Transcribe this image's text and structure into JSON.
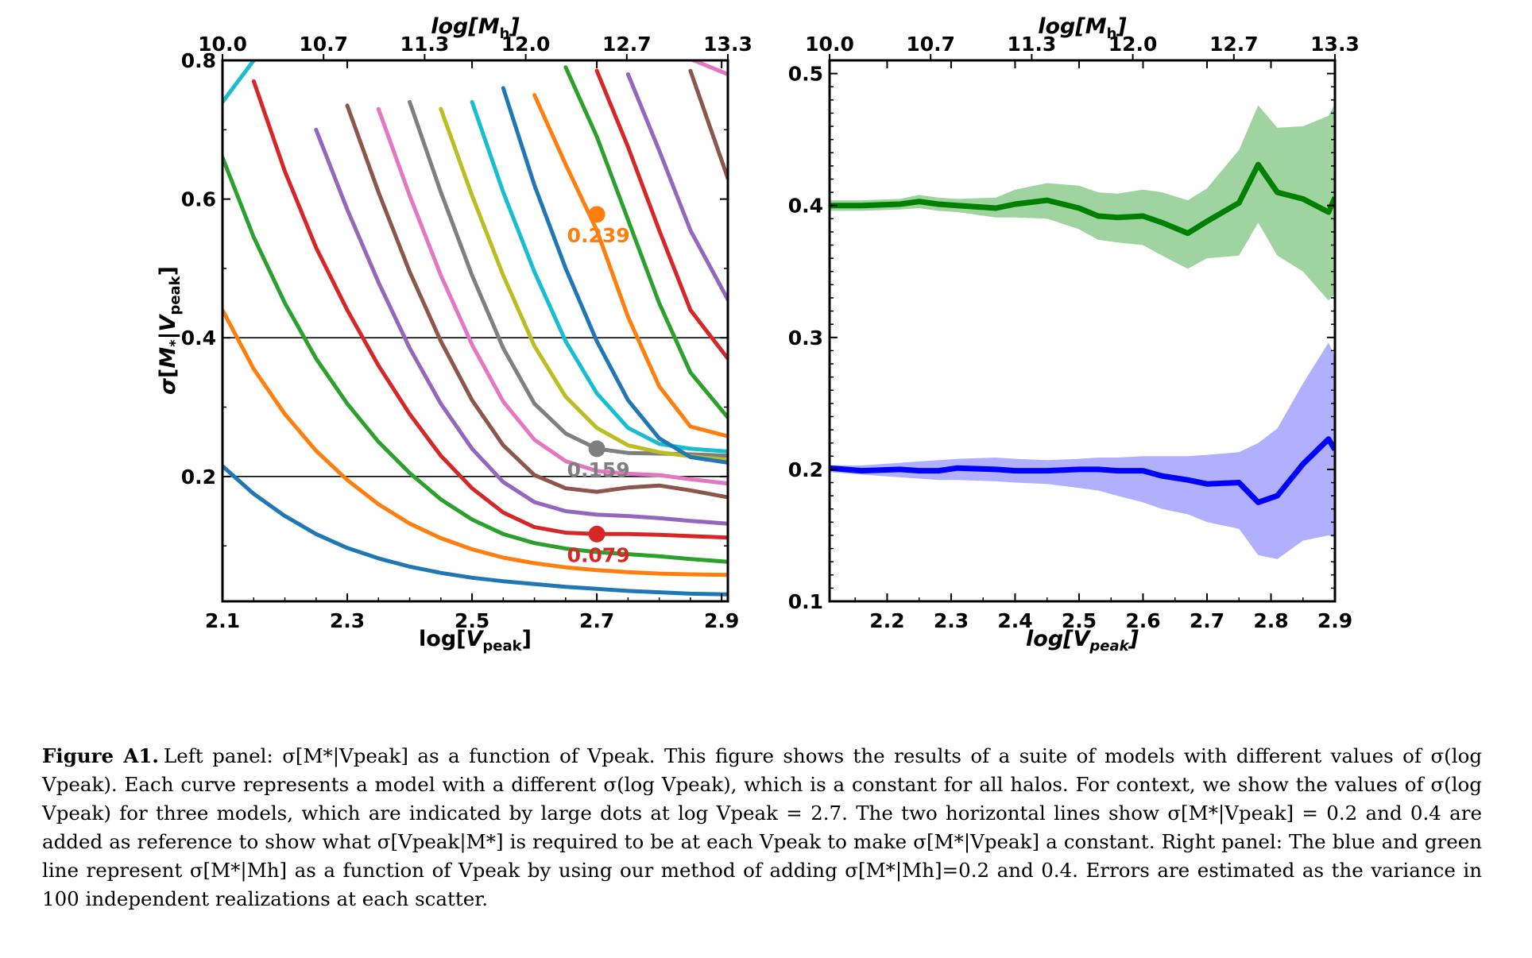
{
  "chart_data": [
    {
      "type": "line",
      "panel": "left",
      "xlabel": "log[V_peak]",
      "ylabel": "σ[M_*|V_peak]",
      "top_axis_label": "log[M_h]",
      "xlim": [
        2.1,
        2.91
      ],
      "ylim": [
        0.02,
        0.8
      ],
      "x_ticks": [
        "2.1",
        "2.3",
        "2.5",
        "2.7",
        "2.9"
      ],
      "x_tick_values": [
        2.1,
        2.3,
        2.5,
        2.7,
        2.9
      ],
      "y_ticks": [
        "0.8",
        "0.6",
        "0.4",
        "0.2"
      ],
      "y_tick_values": [
        0.8,
        0.6,
        0.4,
        0.2
      ],
      "top_ticks": [
        "10.0",
        "10.7",
        "11.3",
        "12.0",
        "12.7",
        "13.3"
      ],
      "top_tick_x": [
        2.1,
        2.262,
        2.424,
        2.586,
        2.748,
        2.91
      ],
      "hlines": [
        0.4,
        0.2
      ],
      "x": [
        2.1,
        2.15,
        2.2,
        2.25,
        2.3,
        2.35,
        2.4,
        2.45,
        2.5,
        2.55,
        2.6,
        2.65,
        2.7,
        2.75,
        2.8,
        2.85,
        2.91
      ],
      "series": [
        {
          "color": "#1f77b4",
          "values": [
            0.215,
            0.175,
            0.143,
            0.117,
            0.097,
            0.082,
            0.07,
            0.061,
            0.054,
            0.049,
            0.045,
            0.041,
            0.038,
            0.035,
            0.033,
            0.031,
            0.03
          ]
        },
        {
          "color": "#ff7f0e",
          "values": [
            0.44,
            0.355,
            0.29,
            0.237,
            0.195,
            0.16,
            0.132,
            0.111,
            0.095,
            0.083,
            0.075,
            0.069,
            0.065,
            0.062,
            0.06,
            0.059,
            0.058
          ]
        },
        {
          "color": "#2ca02c",
          "values": [
            0.66,
            0.545,
            0.45,
            0.37,
            0.305,
            0.25,
            0.205,
            0.167,
            0.138,
            0.117,
            0.104,
            0.096,
            0.091,
            0.088,
            0.085,
            0.081,
            0.077
          ]
        },
        {
          "color": "#d62728",
          "values": [
            null,
            0.77,
            0.64,
            0.53,
            0.44,
            0.36,
            0.29,
            0.23,
            0.183,
            0.148,
            0.127,
            0.119,
            0.117,
            0.117,
            0.116,
            0.114,
            0.112
          ]
        },
        {
          "color": "#9467bd",
          "values": [
            null,
            null,
            null,
            0.7,
            0.585,
            0.48,
            0.385,
            0.305,
            0.24,
            0.192,
            0.163,
            0.15,
            0.145,
            0.143,
            0.14,
            0.136,
            0.132
          ]
        },
        {
          "color": "#8c564b",
          "values": [
            null,
            null,
            null,
            null,
            0.735,
            0.61,
            0.495,
            0.395,
            0.31,
            0.245,
            0.202,
            0.183,
            0.178,
            0.184,
            0.187,
            0.18,
            0.17
          ]
        },
        {
          "color": "#e377c2",
          "values": [
            null,
            null,
            null,
            null,
            null,
            0.73,
            0.605,
            0.49,
            0.39,
            0.308,
            0.253,
            0.222,
            0.208,
            0.204,
            0.202,
            0.196,
            0.19
          ]
        },
        {
          "color": "#7f7f7f",
          "values": [
            null,
            null,
            null,
            null,
            null,
            null,
            0.74,
            0.61,
            0.49,
            0.385,
            0.305,
            0.262,
            0.24,
            0.234,
            0.233,
            0.232,
            0.23
          ]
        },
        {
          "color": "#bcbd22",
          "values": [
            null,
            null,
            null,
            null,
            null,
            null,
            null,
            0.73,
            0.605,
            0.49,
            0.388,
            0.315,
            0.27,
            0.245,
            0.235,
            0.229,
            0.224
          ]
        },
        {
          "color": "#17becf",
          "values": [
            null,
            null,
            null,
            null,
            null,
            null,
            null,
            null,
            0.74,
            0.61,
            0.495,
            0.395,
            0.32,
            0.27,
            0.247,
            0.24,
            0.236
          ]
        },
        {
          "color": "#1f77b4",
          "values": [
            null,
            null,
            null,
            null,
            null,
            null,
            null,
            null,
            null,
            0.76,
            0.62,
            0.5,
            0.395,
            0.31,
            0.255,
            0.228,
            0.22
          ]
        },
        {
          "color": "#ff7f0e",
          "values": [
            null,
            null,
            null,
            null,
            null,
            null,
            null,
            null,
            null,
            null,
            0.75,
            0.65,
            0.555,
            0.43,
            0.33,
            0.272,
            0.258
          ]
        },
        {
          "color": "#2ca02c",
          "values": [
            null,
            null,
            null,
            null,
            null,
            null,
            null,
            null,
            null,
            null,
            null,
            0.79,
            0.69,
            0.57,
            0.45,
            0.35,
            0.285
          ]
        },
        {
          "color": "#d62728",
          "values": [
            null,
            null,
            null,
            null,
            null,
            null,
            null,
            null,
            null,
            null,
            null,
            null,
            0.785,
            0.675,
            0.555,
            0.44,
            0.37
          ]
        },
        {
          "color": "#9467bd",
          "values": [
            null,
            null,
            null,
            null,
            null,
            null,
            null,
            null,
            null,
            null,
            null,
            null,
            null,
            0.78,
            0.67,
            0.555,
            0.455
          ]
        },
        {
          "color": "#8c564b",
          "values": [
            null,
            null,
            null,
            null,
            null,
            null,
            null,
            null,
            null,
            null,
            null,
            null,
            null,
            null,
            null,
            0.785,
            0.63
          ]
        },
        {
          "color": "#17becf",
          "values": [
            0.74,
            0.8,
            null,
            null,
            null,
            null,
            null,
            null,
            null,
            null,
            null,
            null,
            null,
            null,
            null,
            null,
            null
          ]
        },
        {
          "color": "#e377c2",
          "values": [
            null,
            null,
            null,
            null,
            null,
            null,
            null,
            null,
            null,
            null,
            null,
            null,
            null,
            null,
            null,
            0.802,
            0.78
          ]
        }
      ],
      "markers": [
        {
          "x": 2.7,
          "y": 0.578,
          "color": "#ff7f0e",
          "label": "0.239"
        },
        {
          "x": 2.7,
          "y": 0.24,
          "color": "#7f7f7f",
          "label": "0.159"
        },
        {
          "x": 2.7,
          "y": 0.117,
          "color": "#d62728",
          "label": "0.079"
        }
      ]
    },
    {
      "type": "area",
      "panel": "right",
      "xlabel": "log[V_peak]",
      "top_axis_label": "log[M_h]",
      "xlim": [
        2.11,
        2.9
      ],
      "ylim": [
        0.1,
        0.51
      ],
      "x_ticks": [
        "2.2",
        "2.3",
        "2.4",
        "2.5",
        "2.6",
        "2.7",
        "2.8",
        "2.9"
      ],
      "x_tick_values": [
        2.2,
        2.3,
        2.4,
        2.5,
        2.6,
        2.7,
        2.8,
        2.9
      ],
      "y_ticks": [
        "0.5",
        "0.4",
        "0.3",
        "0.2",
        "0.1"
      ],
      "y_tick_values": [
        0.5,
        0.4,
        0.3,
        0.2,
        0.1
      ],
      "top_ticks": [
        "10.0",
        "10.7",
        "11.3",
        "12.0",
        "12.7",
        "13.3"
      ],
      "top_tick_x": [
        2.11,
        2.268,
        2.426,
        2.584,
        2.742,
        2.9
      ],
      "x": [
        2.11,
        2.16,
        2.22,
        2.25,
        2.28,
        2.31,
        2.37,
        2.4,
        2.45,
        2.5,
        2.53,
        2.56,
        2.6,
        2.63,
        2.67,
        2.7,
        2.75,
        2.78,
        2.81,
        2.85,
        2.89,
        2.9
      ],
      "series": [
        {
          "color": "#008000",
          "fill": "#9fd39f",
          "values": [
            0.4,
            0.4,
            0.401,
            0.403,
            0.401,
            0.4,
            0.398,
            0.401,
            0.404,
            0.398,
            0.392,
            0.391,
            0.392,
            0.387,
            0.379,
            0.388,
            0.402,
            0.431,
            0.41,
            0.405,
            0.395,
            0.406
          ],
          "upper": [
            0.404,
            0.404,
            0.405,
            0.408,
            0.406,
            0.405,
            0.406,
            0.412,
            0.417,
            0.415,
            0.41,
            0.409,
            0.412,
            0.41,
            0.404,
            0.413,
            0.442,
            0.476,
            0.459,
            0.46,
            0.468,
            0.477
          ],
          "lower": [
            0.396,
            0.396,
            0.397,
            0.398,
            0.396,
            0.395,
            0.391,
            0.391,
            0.39,
            0.382,
            0.374,
            0.372,
            0.37,
            0.362,
            0.352,
            0.36,
            0.362,
            0.387,
            0.362,
            0.35,
            0.328,
            0.333
          ]
        },
        {
          "color": "#0000ff",
          "fill": "#b0b0ff",
          "values": [
            0.201,
            0.199,
            0.2,
            0.199,
            0.199,
            0.201,
            0.2,
            0.199,
            0.199,
            0.2,
            0.2,
            0.199,
            0.199,
            0.195,
            0.192,
            0.189,
            0.19,
            0.175,
            0.18,
            0.204,
            0.223,
            0.215
          ],
          "upper": [
            0.203,
            0.203,
            0.205,
            0.206,
            0.207,
            0.208,
            0.209,
            0.208,
            0.207,
            0.208,
            0.209,
            0.209,
            0.21,
            0.21,
            0.21,
            0.211,
            0.213,
            0.22,
            0.231,
            0.265,
            0.296,
            0.286
          ],
          "lower": [
            0.198,
            0.196,
            0.194,
            0.193,
            0.192,
            0.192,
            0.191,
            0.19,
            0.189,
            0.186,
            0.184,
            0.18,
            0.175,
            0.17,
            0.166,
            0.16,
            0.155,
            0.135,
            0.132,
            0.146,
            0.15,
            0.148
          ]
        }
      ]
    }
  ],
  "caption": {
    "label": "Figure A1.",
    "text": "Left panel: σ[M*|Vpeak] as a function of Vpeak. This figure shows the results of a suite of models with different values of σ(log Vpeak). Each curve represents a model with a different σ(log Vpeak), which is a constant for all halos. For context, we show the values of σ(log Vpeak) for three models, which are indicated by large dots at log Vpeak = 2.7. The two horizontal lines show σ[M*|Vpeak] = 0.2 and 0.4 are added as reference to show what σ[Vpeak|M*] is required to be at each Vpeak to make σ[M*|Vpeak] a constant. Right panel: The blue and green line represent σ[M*|Mh] as a function of Vpeak by using our method of adding σ[M*|Mh]=0.2 and 0.4. Errors are estimated as the variance in 100 independent realizations at each scatter."
  }
}
